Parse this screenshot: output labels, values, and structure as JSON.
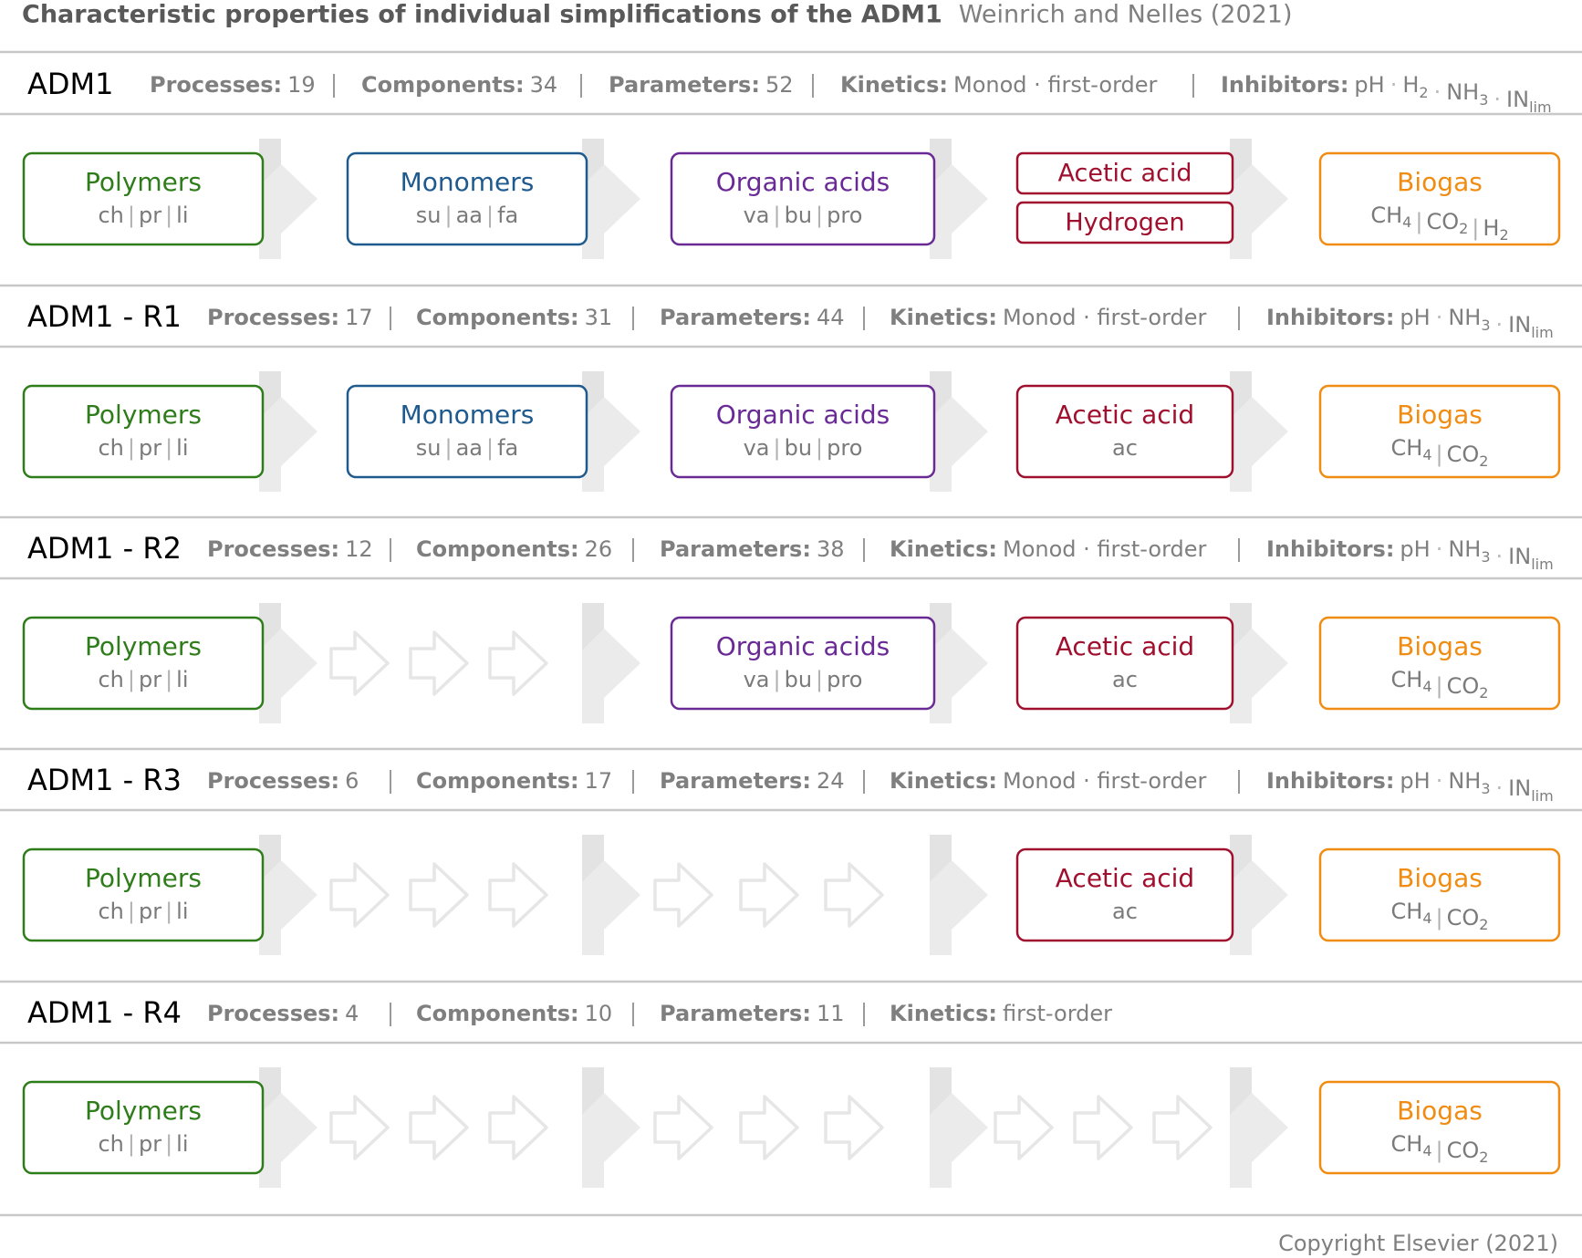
{
  "title": "Characteristic properties of individual simplifications of the ADM1",
  "subtitle": "Weinrich and Nelles (2021)",
  "copyright": "Copyright Elsevier (2021)",
  "colors": {
    "polymers": "#2e7d1a",
    "monomers": "#1f5a8e",
    "organic_acids": "#6a2a96",
    "acetic_acid": "#a0102e",
    "biogas": "#f08c12",
    "label": "#7f7f7f",
    "rule": "#c8c8c8",
    "arrow": "#ebebeb"
  },
  "stats_labels": {
    "processes": "Processes:",
    "components": "Components:",
    "parameters": "Parameters:",
    "kinetics": "Kinetics:",
    "inhibitors": "Inhibitors:"
  },
  "models": [
    {
      "name": "ADM1",
      "processes": "19",
      "components": "34",
      "parameters": "52",
      "kinetics": "Monod · first-order",
      "inhibitors": [
        "pH",
        "H|2",
        "NH|3",
        "IN|lim"
      ],
      "boxes": [
        {
          "key": "polymers",
          "title": "Polymers",
          "sub": "ch | pr | li"
        },
        {
          "key": "monomers",
          "title": "Monomers",
          "sub": "su | aa | fa"
        },
        {
          "key": "organic_acids",
          "title": "Organic acids",
          "sub": "va | bu | pro"
        },
        {
          "key": "acetic_hydrogen",
          "title": "Acetic acid",
          "title2": "Hydrogen"
        },
        {
          "key": "biogas",
          "title": "Biogas",
          "sub": "CH4 | CO2 | H2"
        }
      ]
    },
    {
      "name": "ADM1 - R1",
      "processes": "17",
      "components": "31",
      "parameters": "44",
      "kinetics": "Monod · first-order",
      "inhibitors": [
        "pH",
        "NH|3",
        "IN|lim"
      ],
      "boxes": [
        {
          "key": "polymers",
          "title": "Polymers",
          "sub": "ch | pr | li"
        },
        {
          "key": "monomers",
          "title": "Monomers",
          "sub": "su | aa | fa"
        },
        {
          "key": "organic_acids",
          "title": "Organic acids",
          "sub": "va | bu | pro"
        },
        {
          "key": "acetic_acid",
          "title": "Acetic acid",
          "sub": "ac"
        },
        {
          "key": "biogas",
          "title": "Biogas",
          "sub": "CH4 | CO2"
        }
      ]
    },
    {
      "name": "ADM1 - R2",
      "processes": "12",
      "components": "26",
      "parameters": "38",
      "kinetics": "Monod · first-order",
      "inhibitors": [
        "pH",
        "NH|3",
        "IN|lim"
      ],
      "boxes": [
        {
          "key": "polymers",
          "title": "Polymers",
          "sub": "ch | pr | li"
        },
        {
          "key": "organic_acids",
          "title": "Organic acids",
          "sub": "va | bu | pro"
        },
        {
          "key": "acetic_acid",
          "title": "Acetic acid",
          "sub": "ac"
        },
        {
          "key": "biogas",
          "title": "Biogas",
          "sub": "CH4 | CO2"
        }
      ]
    },
    {
      "name": "ADM1 - R3",
      "processes": "6",
      "components": "17",
      "parameters": "24",
      "kinetics": "Monod · first-order",
      "inhibitors": [
        "pH",
        "NH|3",
        "IN|lim"
      ],
      "boxes": [
        {
          "key": "polymers",
          "title": "Polymers",
          "sub": "ch | pr | li"
        },
        {
          "key": "acetic_acid",
          "title": "Acetic acid",
          "sub": "ac"
        },
        {
          "key": "biogas",
          "title": "Biogas",
          "sub": "CH4 | CO2"
        }
      ]
    },
    {
      "name": "ADM1 - R4",
      "processes": "4",
      "components": "10",
      "parameters": "11",
      "kinetics": "first-order",
      "inhibitors": [],
      "boxes": [
        {
          "key": "polymers",
          "title": "Polymers",
          "sub": "ch | pr | li"
        },
        {
          "key": "biogas",
          "title": "Biogas",
          "sub": "CH4 | CO2"
        }
      ]
    }
  ]
}
